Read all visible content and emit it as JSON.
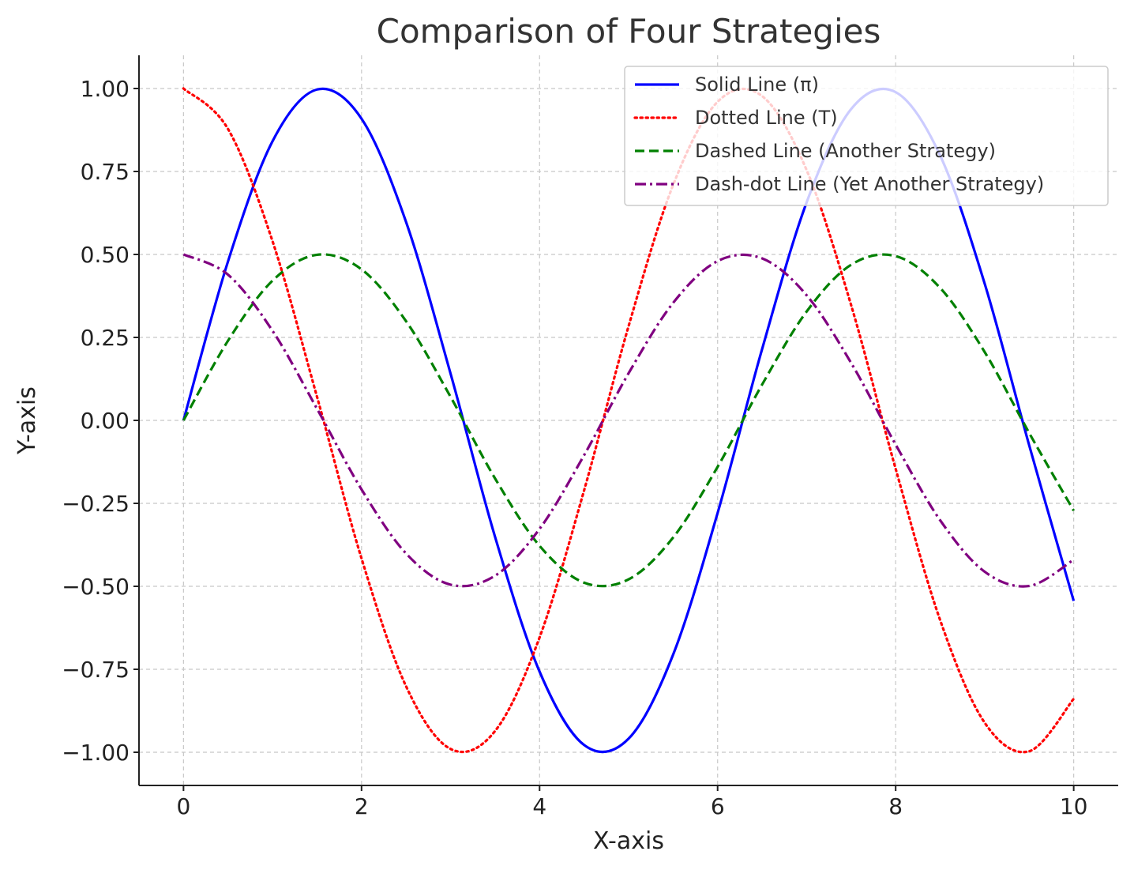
{
  "chart_data": {
    "type": "line",
    "title": "Comparison of Four Strategies",
    "xlabel": "X-axis",
    "ylabel": "Y-axis",
    "xlim": [
      -0.5,
      10.5
    ],
    "ylim": [
      -1.1,
      1.1
    ],
    "x_ticks": [
      0,
      2,
      4,
      6,
      8,
      10
    ],
    "x_tick_labels": [
      "0",
      "2",
      "4",
      "6",
      "8",
      "10"
    ],
    "y_ticks": [
      1.0,
      0.75,
      0.5,
      0.25,
      0.0,
      -0.25,
      -0.5,
      -0.75,
      -1.0
    ],
    "y_tick_labels": [
      "1.00",
      "0.75",
      "0.50",
      "0.25",
      "0.00",
      "−0.25",
      "−0.50",
      "−0.75",
      "−1.00"
    ],
    "grid": true,
    "legend_position": "top-right",
    "x": [
      0,
      0.5,
      1,
      1.5,
      2,
      2.5,
      3,
      3.5,
      4,
      4.5,
      5,
      5.5,
      6,
      6.5,
      7,
      7.5,
      8,
      8.5,
      9,
      9.5,
      10
    ],
    "series": [
      {
        "name": "Solid Line (π)",
        "color": "#0000ff",
        "style": "solid",
        "values": [
          0.0,
          0.479,
          0.841,
          0.997,
          0.909,
          0.598,
          0.141,
          -0.351,
          -0.757,
          -0.978,
          -0.959,
          -0.706,
          -0.279,
          0.215,
          0.657,
          0.938,
          0.989,
          0.798,
          0.412,
          -0.075,
          -0.544
        ]
      },
      {
        "name": "Dotted Line (T)",
        "color": "#ff0000",
        "style": "dotted",
        "values": [
          1.0,
          0.878,
          0.54,
          0.071,
          -0.416,
          -0.801,
          -0.99,
          -0.936,
          -0.654,
          -0.211,
          0.284,
          0.709,
          0.96,
          0.977,
          0.754,
          0.347,
          -0.146,
          -0.602,
          -0.911,
          -0.997,
          -0.839
        ]
      },
      {
        "name": "Dashed Line (Another Strategy)",
        "color": "#008000",
        "style": "dashed",
        "values": [
          0.0,
          0.24,
          0.421,
          0.499,
          0.455,
          0.299,
          0.071,
          -0.175,
          -0.378,
          -0.489,
          -0.479,
          -0.353,
          -0.14,
          0.108,
          0.328,
          0.469,
          0.495,
          0.399,
          0.206,
          -0.038,
          -0.272
        ]
      },
      {
        "name": "Dash-dot Line (Yet Another Strategy)",
        "color": "#800080",
        "style": "dashdot",
        "values": [
          0.5,
          0.439,
          0.27,
          0.035,
          -0.208,
          -0.401,
          -0.495,
          -0.468,
          -0.327,
          -0.105,
          0.142,
          0.354,
          0.48,
          0.488,
          0.377,
          0.173,
          -0.073,
          -0.301,
          -0.456,
          -0.499,
          -0.42
        ]
      }
    ]
  }
}
